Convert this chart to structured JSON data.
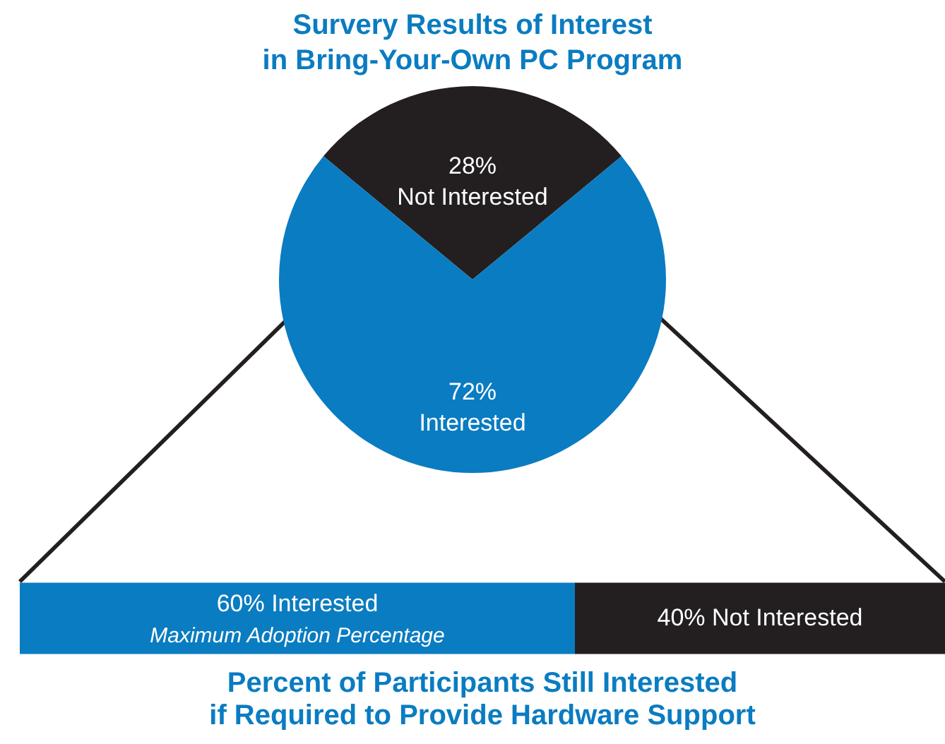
{
  "chart_data": [
    {
      "type": "pie",
      "title": "Survery Results of Interest in Bring-Your-Own PC Program",
      "categories": [
        "Not Interested",
        "Interested"
      ],
      "values": [
        28,
        72
      ],
      "colors": [
        "#231f20",
        "#0a7cc1"
      ],
      "value_labels": [
        "28%",
        "72%"
      ]
    },
    {
      "type": "bar",
      "orientation": "horizontal",
      "stacked": true,
      "title": "Percent of Participants Still Interested if Required to Provide Hardware Support",
      "categories": [
        null
      ],
      "series": [
        {
          "color": "#0a7cc1",
          "values": [
            60
          ],
          "value_labels": [
            "60% Interested"
          ]
        },
        {
          "color": "#231f20",
          "values": [
            40
          ],
          "value_labels": [
            "40% Not Interested"
          ]
        }
      ],
      "annotations": [
        "Maximum Adoption Percentage"
      ]
    }
  ]
}
